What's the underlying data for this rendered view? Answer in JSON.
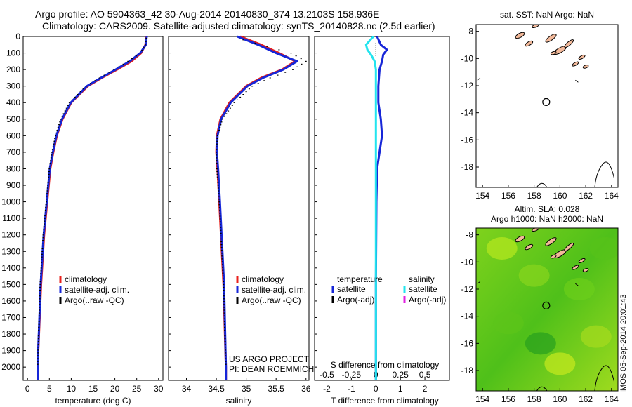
{
  "header": {
    "line1": "Argo profile: AO 5904363_42 30-Aug-2014 20140830_374 13.2103S 158.936E",
    "line2": "Climatology: CARS2009. Satellite-adjusted climatology: synTS_20140828.nc (2.5d earlier)"
  },
  "side_stamp": "IMOS 05-Sep-2014 20:01:43",
  "project_note": {
    "line1": "US ARGO PROJECT",
    "line2": "PI: DEAN ROEMMICH"
  },
  "colors": {
    "climatology": "#e8201c",
    "satellite": "#1626d8",
    "argo": "#000000",
    "s_satellite": "#22e4ee",
    "s_argo": "#e020e0",
    "land": "#f3b99a"
  },
  "chart_data": [
    {
      "id": "temperature",
      "type": "line",
      "xlabel": "temperature (deg C)",
      "ylabel": "depth",
      "xlim": [
        -1,
        31
      ],
      "ylim": [
        2080,
        0
      ],
      "xticks": [
        0,
        5,
        10,
        15,
        20,
        25,
        30
      ],
      "yticks": [
        0,
        100,
        200,
        300,
        400,
        500,
        600,
        700,
        800,
        900,
        1000,
        1100,
        1200,
        1300,
        1400,
        1500,
        1600,
        1700,
        1800,
        1900,
        2000
      ],
      "series": [
        {
          "name": "climatology",
          "style": "line",
          "depth": [
            0,
            50,
            100,
            150,
            200,
            250,
            300,
            400,
            500,
            600,
            700,
            800,
            1000,
            1200,
            1500,
            2000,
            2080
          ],
          "values": [
            27.2,
            27.0,
            26.0,
            23.8,
            20.5,
            17.0,
            13.8,
            10.0,
            8.0,
            6.7,
            5.9,
            5.2,
            4.5,
            3.8,
            3.1,
            2.3,
            2.3
          ]
        },
        {
          "name": "satellite-adj. clim.",
          "style": "line",
          "depth": [
            0,
            50,
            100,
            150,
            200,
            250,
            300,
            400,
            500,
            600,
            700,
            800,
            1000,
            1200,
            1500,
            2000,
            2080
          ],
          "values": [
            27.3,
            27.1,
            25.8,
            23.4,
            20.2,
            16.8,
            13.6,
            9.9,
            7.9,
            6.6,
            5.8,
            5.1,
            4.4,
            3.7,
            3.0,
            2.3,
            2.3
          ]
        },
        {
          "name": "Argo(..raw -QC)",
          "style": "dots",
          "depth": [
            10,
            50,
            100,
            150,
            200,
            250,
            300,
            400,
            500,
            600,
            700,
            800,
            1000,
            1200,
            1500,
            2000
          ],
          "values": [
            27.2,
            27.0,
            25.8,
            23.0,
            19.8,
            16.5,
            13.4,
            9.6,
            7.6,
            6.4,
            5.6,
            5.0,
            4.3,
            3.6,
            2.9,
            2.3
          ]
        }
      ],
      "legend": [
        "climatology",
        "satellite-adj. clim.",
        "Argo(..raw -QC)"
      ]
    },
    {
      "id": "salinity",
      "type": "line",
      "xlabel": "salinity",
      "ylim": [
        2080,
        0
      ],
      "xlim": [
        33.7,
        36.05
      ],
      "xticks": [
        34,
        34.5,
        35,
        35.5,
        36
      ],
      "series": [
        {
          "name": "climatology",
          "style": "line",
          "depth": [
            0,
            50,
            100,
            150,
            200,
            250,
            300,
            400,
            500,
            600,
            700,
            800,
            1000,
            1500,
            2000,
            2080
          ],
          "values": [
            34.9,
            35.25,
            35.55,
            35.82,
            35.6,
            35.25,
            35.0,
            34.72,
            34.57,
            34.51,
            34.5,
            34.52,
            34.55,
            34.62,
            34.66,
            34.66
          ]
        },
        {
          "name": "satellite-adj. clim.",
          "style": "line",
          "depth": [
            0,
            50,
            100,
            150,
            200,
            250,
            300,
            400,
            500,
            600,
            700,
            800,
            1000,
            1500,
            2000,
            2080
          ],
          "values": [
            34.85,
            35.2,
            35.5,
            35.85,
            35.62,
            35.28,
            35.02,
            34.74,
            34.58,
            34.52,
            34.51,
            34.53,
            34.56,
            34.63,
            34.66,
            34.66
          ]
        },
        {
          "name": "Argo(..raw -QC)",
          "style": "dots",
          "depth": [
            20,
            60,
            100,
            150,
            200,
            250,
            300,
            400,
            500,
            600,
            700,
            800,
            1000,
            1500,
            2000
          ],
          "values": [
            34.95,
            35.35,
            35.75,
            36.0,
            35.78,
            35.4,
            35.1,
            34.8,
            34.6,
            34.52,
            34.5,
            34.51,
            34.55,
            34.62,
            34.66
          ]
        }
      ],
      "legend": [
        "climatology",
        "satellite-adj. clim.",
        "Argo(..raw -QC)"
      ]
    },
    {
      "id": "differences",
      "type": "line",
      "xlabel": "T difference from climatology",
      "xlabel_top": "S difference from climatology",
      "ylim": [
        2080,
        0
      ],
      "xlim": [
        -2.5,
        3
      ],
      "xticks": [
        -2,
        -1,
        0,
        1,
        2
      ],
      "xticks_s": [
        "-0.5",
        "-0.25",
        "0",
        "0.25",
        "0.5"
      ],
      "series": [
        {
          "name": "temperature satellite",
          "style": "line",
          "depth": [
            0,
            50,
            80,
            110,
            150,
            200,
            300,
            400,
            500,
            600,
            700,
            800,
            1000,
            1500,
            2000,
            2080
          ],
          "values": [
            0.05,
            0.2,
            0.45,
            0.3,
            0.25,
            0.15,
            0.1,
            0.1,
            0.2,
            0.25,
            0.15,
            0.05,
            0.02,
            0.0,
            0.0,
            0.0
          ]
        },
        {
          "name": "salinity satellite",
          "style": "line",
          "depth": [
            0,
            50,
            80,
            110,
            150,
            200,
            300,
            400,
            600,
            800,
            1000,
            1500,
            2000,
            2080
          ],
          "values": [
            -0.1,
            -0.4,
            -0.35,
            -0.2,
            -0.05,
            0.0,
            0.0,
            0.0,
            0.0,
            0.0,
            0.0,
            0.0,
            0.0,
            0.0
          ]
        }
      ],
      "legend_groups": {
        "left_title": "temperature",
        "right_title": "salinity",
        "left": [
          "satellite",
          "Argo(-adj)"
        ],
        "right": [
          "satellite",
          "Argo(-adj)"
        ]
      }
    },
    {
      "id": "sst_map",
      "type": "map",
      "title": "sat. SST: NaN Argo: NaN",
      "xlim": [
        153.5,
        164.5
      ],
      "ylim": [
        -19.5,
        -7.5
      ],
      "xticks": [
        154,
        156,
        158,
        160,
        162,
        164
      ],
      "yticks": [
        -8,
        -10,
        -12,
        -14,
        -16,
        -18
      ],
      "profile_position": {
        "lon": 158.936,
        "lat": -13.2103
      }
    },
    {
      "id": "sla_map",
      "type": "map",
      "title": "Altim. SLA: 0.028",
      "subtitle": "Argo h1000: NaN h2000: NaN",
      "xlim": [
        153.5,
        164.5
      ],
      "ylim": [
        -19.5,
        -7.5
      ],
      "xticks": [
        154,
        156,
        158,
        160,
        162,
        164
      ],
      "yticks": [
        -8,
        -10,
        -12,
        -14,
        -16,
        -18
      ],
      "profile_position": {
        "lon": 158.936,
        "lat": -13.2103
      }
    }
  ]
}
